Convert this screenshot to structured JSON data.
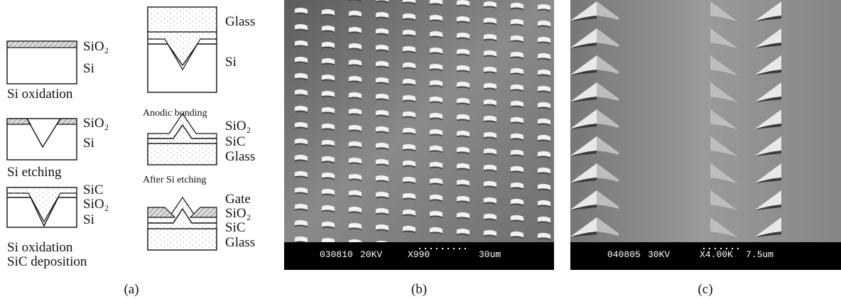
{
  "panel_a": {
    "left": [
      {
        "labels": [
          "SiO₂",
          "Si"
        ],
        "caption": [
          "Si oxidation"
        ]
      },
      {
        "labels": [
          "SiO₂",
          "Si"
        ],
        "caption": [
          "Si etching"
        ]
      },
      {
        "labels": [
          "SiC",
          "SiO₂",
          "Si"
        ],
        "caption": [
          "Si oxidation",
          "SiC deposition"
        ]
      }
    ],
    "right": [
      {
        "labels": [
          "Glass",
          "Si"
        ],
        "caption": [
          "Anodic bonding"
        ]
      },
      {
        "labels": [
          "SiO₂",
          "SiC",
          "Glass"
        ],
        "caption": [
          "After Si etching"
        ]
      },
      {
        "labels": [
          "Gate",
          "SiO₂",
          "SiC",
          "Glass"
        ]
      }
    ]
  },
  "panel_b": {
    "footer": [
      "030810",
      "20KV",
      "X990",
      "30um"
    ]
  },
  "panel_c": {
    "footer": [
      "040805",
      "30KV",
      "X4.00K",
      "7.5um"
    ]
  },
  "captions": [
    "(a)",
    "(b)",
    "(c)"
  ]
}
